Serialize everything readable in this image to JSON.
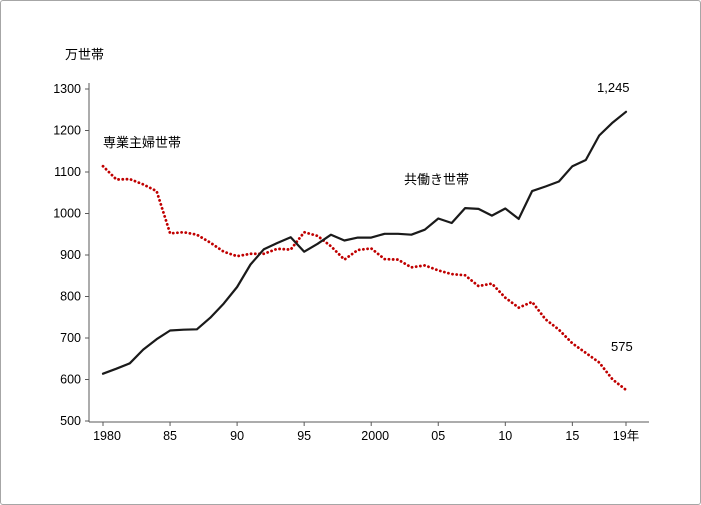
{
  "annotations": {
    "unit": "万世帯",
    "sengyoshufu_label": "専業主婦世帯",
    "tomobataraki_label": "共働き世帯",
    "end_value_tomobataraki": "1,245",
    "end_value_sengyoshufu": "575",
    "x_axis_last_suffix": "19年"
  },
  "chart_data": {
    "type": "line",
    "title": "",
    "xlabel": "",
    "ylabel": "万世帯",
    "ylim": [
      500,
      1300
    ],
    "xlim": [
      1980,
      2019
    ],
    "grid": false,
    "legend": "inline-annotations",
    "y_ticks": [
      500,
      600,
      700,
      800,
      900,
      1000,
      1100,
      1200,
      1300
    ],
    "x_ticks": [
      {
        "year": 1980,
        "label": "1980"
      },
      {
        "year": 1985,
        "label": "85"
      },
      {
        "year": 1990,
        "label": "90"
      },
      {
        "year": 1995,
        "label": "95"
      },
      {
        "year": 2000,
        "label": "2000"
      },
      {
        "year": 2005,
        "label": "05"
      },
      {
        "year": 2010,
        "label": "10"
      },
      {
        "year": 2015,
        "label": "15"
      },
      {
        "year": 2019,
        "label": "19年"
      }
    ],
    "x": [
      1980,
      1981,
      1982,
      1983,
      1984,
      1985,
      1986,
      1987,
      1988,
      1989,
      1990,
      1991,
      1992,
      1993,
      1994,
      1995,
      1996,
      1997,
      1998,
      1999,
      2000,
      2001,
      2002,
      2003,
      2004,
      2005,
      2006,
      2007,
      2008,
      2009,
      2010,
      2011,
      2012,
      2013,
      2014,
      2015,
      2016,
      2017,
      2018,
      2019
    ],
    "series": [
      {
        "name": "専業主婦世帯",
        "color": "#c00000",
        "style": "dotted",
        "end_label": "575",
        "values": [
          1114,
          1082,
          1083,
          1070,
          1054,
          952,
          955,
          949,
          930,
          908,
          897,
          903,
          903,
          915,
          913,
          955,
          946,
          921,
          889,
          912,
          916,
          890,
          889,
          870,
          875,
          863,
          854,
          851,
          825,
          831,
          797,
          773,
          787,
          745,
          720,
          687,
          664,
          641,
          600,
          575
        ]
      },
      {
        "name": "共働き世帯",
        "color": "#1a1a1a",
        "style": "solid",
        "end_label": "1,245",
        "values": [
          614,
          626,
          639,
          672,
          697,
          718,
          720,
          721,
          749,
          783,
          823,
          877,
          914,
          929,
          943,
          908,
          927,
          949,
          935,
          942,
          942,
          951,
          951,
          949,
          961,
          988,
          977,
          1013,
          1011,
          995,
          1012,
          987,
          1054,
          1065,
          1077,
          1114,
          1129,
          1188,
          1219,
          1245
        ]
      }
    ]
  }
}
